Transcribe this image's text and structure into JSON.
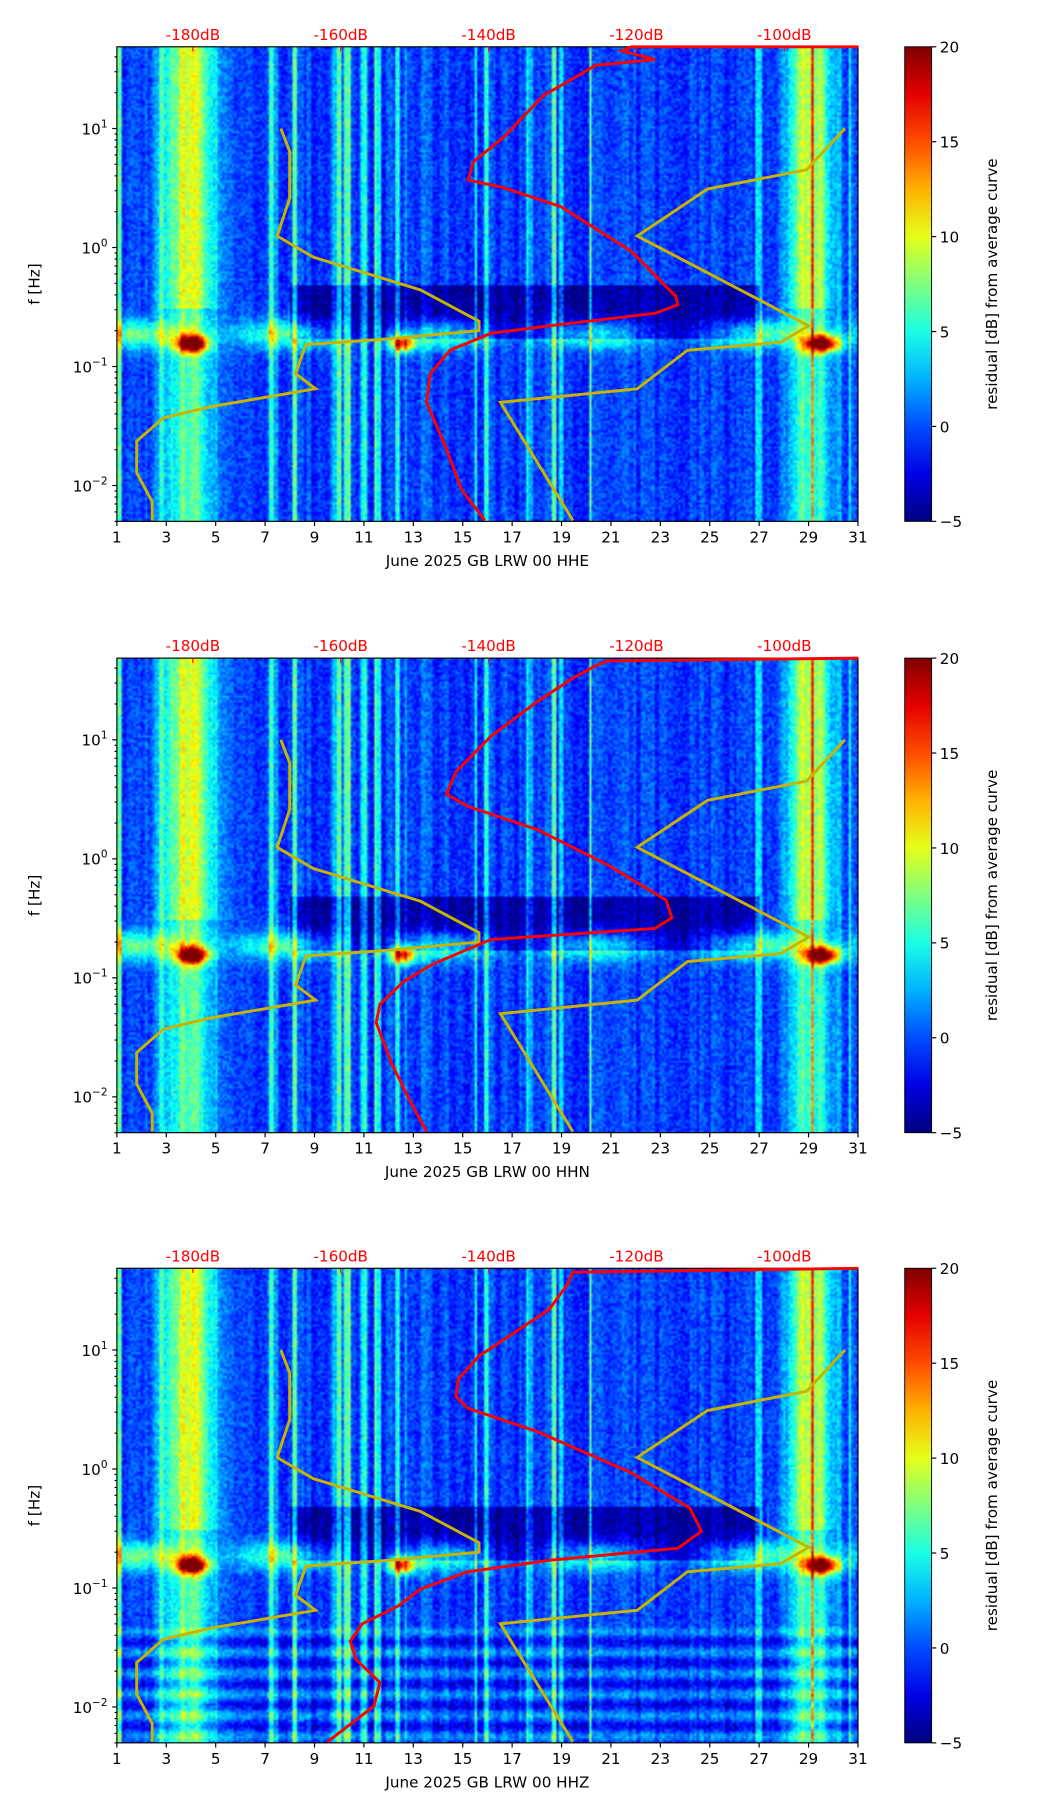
{
  "chart_data": {
    "type": "heatmap",
    "panels": [
      {
        "xlabel": "June 2025 GB LRW 00 HHE",
        "ylabel": "f [Hz]",
        "red_curve": [
          [
            -140.5,
            0.0051
          ],
          [
            -143.6,
            0.0091
          ],
          [
            -146.0,
            0.0225
          ],
          [
            -148.4,
            0.05
          ],
          [
            -147.9,
            0.087
          ],
          [
            -145.2,
            0.137
          ],
          [
            -139.7,
            0.19
          ],
          [
            -131.8,
            0.22
          ],
          [
            -117.5,
            0.28
          ],
          [
            -114.4,
            0.33
          ],
          [
            -114.7,
            0.39
          ],
          [
            -120.7,
            0.93
          ],
          [
            -130.2,
            2.2
          ],
          [
            -138.1,
            3.2
          ],
          [
            -142.8,
            3.7
          ],
          [
            -142.0,
            5.3
          ],
          [
            -138.0,
            8.4
          ],
          [
            -132.6,
            18.9
          ],
          [
            -125.5,
            34
          ],
          [
            -117.5,
            38
          ],
          [
            -122.0,
            45
          ],
          [
            -120.7,
            48.6
          ],
          [
            -90,
            48.6
          ]
        ]
      },
      {
        "xlabel": "June 2025 GB LRW 00 HHN",
        "ylabel": "f [Hz]",
        "red_curve": [
          [
            -148.4,
            0.0051
          ],
          [
            -150.8,
            0.0097
          ],
          [
            -153.1,
            0.019
          ],
          [
            -155.2,
            0.042
          ],
          [
            -154.7,
            0.06
          ],
          [
            -151.5,
            0.093
          ],
          [
            -147.6,
            0.13
          ],
          [
            -139.7,
            0.21
          ],
          [
            -130.2,
            0.23
          ],
          [
            -117.5,
            0.26
          ],
          [
            -115.2,
            0.32
          ],
          [
            -116.0,
            0.45
          ],
          [
            -123.9,
            0.89
          ],
          [
            -133.4,
            1.76
          ],
          [
            -142.8,
            2.76
          ],
          [
            -145.7,
            3.5
          ],
          [
            -144.4,
            5.4
          ],
          [
            -139.7,
            10.7
          ],
          [
            -133.4,
            21
          ],
          [
            -128.6,
            33
          ],
          [
            -125.5,
            42
          ],
          [
            -123.9,
            46
          ],
          [
            -90,
            48.6
          ]
        ]
      },
      {
        "xlabel": "June 2025 GB LRW 00 HHZ",
        "ylabel": "f [Hz]",
        "red_curve": [
          [
            -161.8,
            0.0051
          ],
          [
            -155.5,
            0.0102
          ],
          [
            -154.7,
            0.0161
          ],
          [
            -157.9,
            0.025
          ],
          [
            -158.7,
            0.0357
          ],
          [
            -157.1,
            0.05
          ],
          [
            -152.3,
            0.0702
          ],
          [
            -149.2,
            0.098
          ],
          [
            -142.8,
            0.137
          ],
          [
            -131.8,
            0.171
          ],
          [
            -114.4,
            0.216
          ],
          [
            -111.2,
            0.3
          ],
          [
            -112.8,
            0.47
          ],
          [
            -120.7,
            0.93
          ],
          [
            -133.4,
            2.06
          ],
          [
            -142.8,
            3.24
          ],
          [
            -144.4,
            4.06
          ],
          [
            -144.1,
            5.7
          ],
          [
            -141.3,
            8.9
          ],
          [
            -136.5,
            14
          ],
          [
            -131.8,
            22
          ],
          [
            -129.4,
            35
          ],
          [
            -128.6,
            45
          ],
          [
            -90,
            48.6
          ]
        ]
      }
    ],
    "yellow_curve_low": [
      [
        -185.5,
        0.0051
      ],
      [
        -185.5,
        0.0073
      ],
      [
        -187.6,
        0.0128
      ],
      [
        -187.6,
        0.0236
      ],
      [
        -184.0,
        0.037
      ],
      [
        -177.6,
        0.046
      ],
      [
        -163.4,
        0.065
      ],
      [
        -166.1,
        0.087
      ],
      [
        -164.7,
        0.153
      ],
      [
        -153.9,
        0.17
      ],
      [
        -141.3,
        0.2
      ],
      [
        -141.3,
        0.24
      ],
      [
        -149.2,
        0.44
      ],
      [
        -163.7,
        0.83
      ],
      [
        -168.6,
        1.25
      ],
      [
        -166.9,
        2.6
      ],
      [
        -166.9,
        6.4
      ],
      [
        -168.1,
        10
      ]
    ],
    "yellow_curve_high": [
      [
        -128.6,
        0.0051
      ],
      [
        -138.4,
        0.05
      ],
      [
        -119.9,
        0.065
      ],
      [
        -113.1,
        0.137
      ],
      [
        -100.5,
        0.16
      ],
      [
        -96.7,
        0.22
      ],
      [
        -119.9,
        1.25
      ],
      [
        -110.4,
        3.1
      ],
      [
        -97.0,
        4.5
      ],
      [
        -91.8,
        10
      ]
    ],
    "x_ticks": [
      "1",
      "3",
      "5",
      "7",
      "9",
      "11",
      "13",
      "15",
      "17",
      "19",
      "21",
      "23",
      "25",
      "27",
      "29",
      "31"
    ],
    "xlim": [
      1,
      31
    ],
    "y_ticks": [
      {
        "label": "10",
        "exp": "1",
        "value": 10
      },
      {
        "label": "10",
        "exp": "0",
        "value": 1
      },
      {
        "label": "10",
        "exp": "−1",
        "value": 0.1
      },
      {
        "label": "10",
        "exp": "−2",
        "value": 0.01
      }
    ],
    "ylim": [
      0.005,
      48.6
    ],
    "yscale": "log",
    "top_ticks": [
      {
        "label": "-180dB",
        "value": -180
      },
      {
        "label": "-160dB",
        "value": -160
      },
      {
        "label": "-140dB",
        "value": -140
      },
      {
        "label": "-120dB",
        "value": -120
      },
      {
        "label": "-100dB",
        "value": -100
      }
    ],
    "colorbar": {
      "label": "residual [dB] from average curve",
      "ticks": [
        "20",
        "15",
        "10",
        "5",
        "0",
        "−5"
      ],
      "range": [
        -5,
        20
      ],
      "colormap": "jet"
    },
    "colors": {
      "red_curve": "#ff0000",
      "yellow_curve": "#c8b400",
      "top_tick_text": "#ff0000"
    }
  }
}
